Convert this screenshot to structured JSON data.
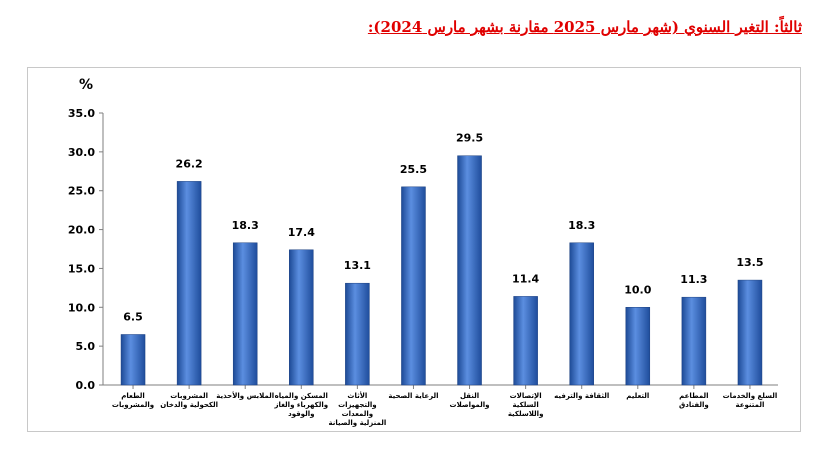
{
  "title": "ثالثاً: التغير السنوي (شهر مارس 2025 مقارنة بشهر مارس 2024):",
  "chart_data": {
    "type": "bar",
    "ylabel": "%",
    "ylim": [
      0,
      35
    ],
    "yticks": [
      "0.0",
      "5.0",
      "10.0",
      "15.0",
      "20.0",
      "25.0",
      "30.0",
      "35.0"
    ],
    "grid": false,
    "bar_color": "#3a6fc4",
    "categories": [
      "الطعام والمشروبات",
      "المشروبات الكحولية والدخان",
      "الملابس والأحذية",
      "المسكن والمياه والكهرباء والغاز والوقود",
      "الأثاث والتجهيزات والمعدات المنزلية والصيانة",
      "الرعاية الصحية",
      "النقل والمواصلات",
      "الإتصالات السلكية واللاسلكية",
      "الثقافة والترفيه",
      "التعليم",
      "المطاعم والفنادق",
      "السلع والخدمات المتنوعة"
    ],
    "values": [
      6.5,
      26.2,
      18.3,
      17.4,
      13.1,
      25.5,
      29.5,
      11.4,
      18.3,
      10.0,
      11.3,
      13.5
    ],
    "value_labels": [
      "6.5",
      "26.2",
      "18.3",
      "17.4",
      "13.1",
      "25.5",
      "29.5",
      "11.4",
      "18.3",
      "10.0",
      "11.3",
      "13.5"
    ]
  }
}
